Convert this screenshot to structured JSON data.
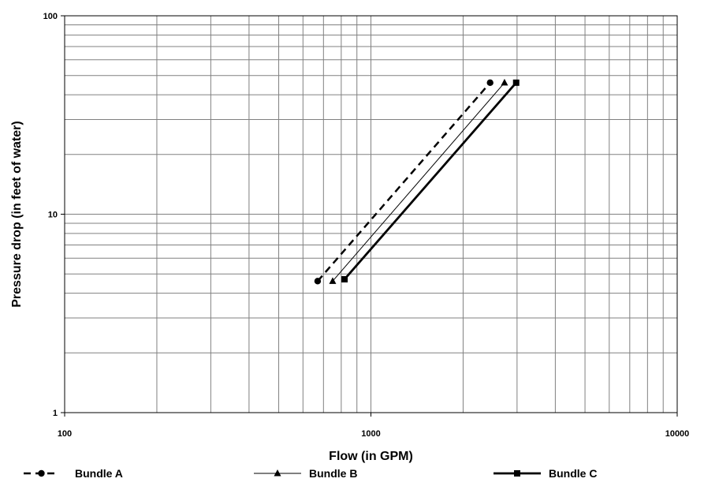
{
  "chart_data": {
    "type": "line",
    "xlabel": "Flow (in GPM)",
    "ylabel": "Pressure drop (in feet of water)",
    "x_scale": "log",
    "y_scale": "log",
    "xlim": [
      100,
      10000
    ],
    "ylim": [
      1,
      100
    ],
    "x_tick_labels": [
      "100",
      "1000",
      "10000"
    ],
    "y_tick_labels": [
      "1",
      "10",
      "100"
    ],
    "grid": true,
    "legend_position": "bottom",
    "series": [
      {
        "name": "Bundle A",
        "x": [
          670,
          2450
        ],
        "y": [
          4.6,
          46
        ],
        "line_style": "dashed",
        "marker": "circle",
        "color": "#000000"
      },
      {
        "name": "Bundle B",
        "x": [
          750,
          2730
        ],
        "y": [
          4.6,
          46
        ],
        "line_style": "thin",
        "marker": "triangle",
        "color": "#000000"
      },
      {
        "name": "Bundle C",
        "x": [
          820,
          2980
        ],
        "y": [
          4.7,
          46
        ],
        "line_style": "thick",
        "marker": "square",
        "color": "#000000"
      }
    ]
  }
}
